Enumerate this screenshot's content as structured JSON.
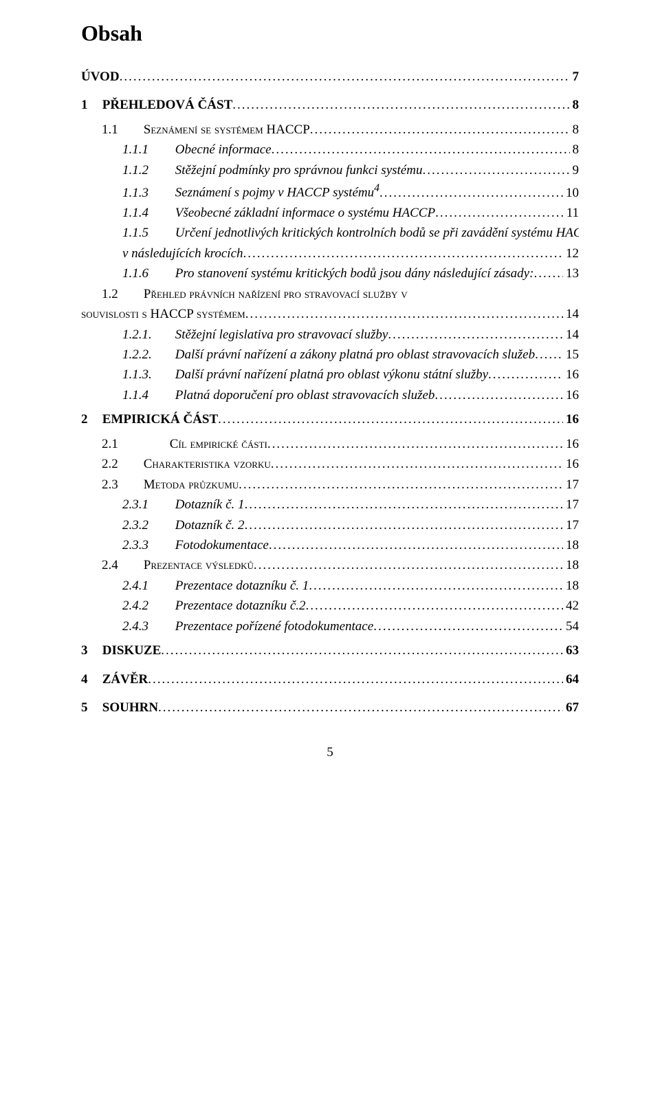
{
  "document": {
    "title": "Obsah",
    "page_number": "5",
    "colors": {
      "text": "#000000",
      "background": "#ffffff"
    },
    "font": {
      "family": "Times New Roman",
      "base_size_pt": 14
    }
  },
  "toc": [
    {
      "level": 0,
      "num": "",
      "text": "ÚVOD",
      "page": "7",
      "style": "heading"
    },
    {
      "level": 0,
      "num": "1",
      "text": "PŘEHLEDOVÁ ČÁST",
      "page": "8",
      "style": "heading"
    },
    {
      "level": 1,
      "num": "1.1",
      "text": "Seznámení se systémem HACCP",
      "page": "8",
      "style": "smallcaps"
    },
    {
      "level": 2,
      "num": "1.1.1",
      "text": "Obecné informace",
      "page": "8",
      "style": "italic"
    },
    {
      "level": 2,
      "num": "1.1.2",
      "text": "Stěžejní podmínky pro správnou funkci systému",
      "page": "9",
      "style": "italic"
    },
    {
      "level": 2,
      "num": "1.1.3",
      "text": "Seznámení s pojmy v HACCP systému",
      "sup": "4",
      "page": "10",
      "style": "italic"
    },
    {
      "level": 2,
      "num": "1.1.4",
      "text": "Všeobecné základní informace o systému HACCP",
      "page": "11",
      "style": "italic"
    },
    {
      "level": 2,
      "num": "1.1.5",
      "text": "Určení jednotlivých kritických kontrolních bodů se při zavádění systému HACCP provádí zhruba          v následujících krocích",
      "page": "12",
      "style": "italic",
      "wrap": true
    },
    {
      "level": 2,
      "num": "1.1.6",
      "text": "Pro stanovení systému kritických bodů jsou dány následující zásady:",
      "page": "13",
      "style": "italic"
    },
    {
      "level": 1,
      "num": "1.2",
      "text": "Přehled právních nařízení  pro stravovací služby v souvislosti s HACCP systémem",
      "page": "14",
      "style": "smallcaps",
      "wrap": true
    },
    {
      "level": 2,
      "num": "1.2.1.",
      "text": "Stěžejní legislativa pro stravovací služby",
      "page": "14",
      "style": "italic"
    },
    {
      "level": 2,
      "num": "1.2.2.",
      "text": "Další právní  nařízení a zákony platná pro oblast stravovacích služeb",
      "page": "15",
      "style": "italic"
    },
    {
      "level": 2,
      "num": "1.1.3.",
      "text": "Další právní  nařízení platná pro oblast výkonu státní služby",
      "page": "16",
      "style": "italic"
    },
    {
      "level": 2,
      "num": "1.1.4",
      "text": "Platná doporučení pro oblast stravovacích služeb",
      "page": "16",
      "style": "italic"
    },
    {
      "level": 0,
      "num": "2",
      "text": "EMPIRICKÁ ČÁST",
      "page": "16",
      "style": "heading"
    },
    {
      "level": 1,
      "num": "2.1",
      "text": "Cíl empirické části",
      "page": "16",
      "style": "smallcaps",
      "tab": true
    },
    {
      "level": 1,
      "num": "2.2",
      "text": "Charakteristika vzorku",
      "page": "16",
      "style": "smallcaps"
    },
    {
      "level": 1,
      "num": "2.3",
      "text": "Metoda průzkumu",
      "page": "17",
      "style": "smallcaps"
    },
    {
      "level": 2,
      "num": "2.3.1",
      "text": "Dotazník č. 1",
      "page": "17",
      "style": "italic"
    },
    {
      "level": 2,
      "num": "2.3.2",
      "text": "Dotazník č. 2",
      "page": "17",
      "style": "italic"
    },
    {
      "level": 2,
      "num": "2.3.3",
      "text": "Fotodokumentace",
      "page": "18",
      "style": "italic"
    },
    {
      "level": 1,
      "num": "2.4",
      "text": "Prezentace výsledků",
      "page": "18",
      "style": "smallcaps"
    },
    {
      "level": 2,
      "num": "2.4.1",
      "text": "Prezentace dotazníku č. 1",
      "page": "18",
      "style": "italic"
    },
    {
      "level": 2,
      "num": "2.4.2",
      "text": "Prezentace dotazníku č.2",
      "page": "42",
      "style": "italic"
    },
    {
      "level": 2,
      "num": "2.4.3",
      "text": "Prezentace pořízené fotodokumentace",
      "page": "54",
      "style": "italic"
    },
    {
      "level": 0,
      "num": "3",
      "text": "DISKUZE",
      "page": "63",
      "style": "heading"
    },
    {
      "level": 0,
      "num": "4",
      "text": "ZÁVĚR",
      "page": "64",
      "style": "heading"
    },
    {
      "level": 0,
      "num": "5",
      "text": "SOUHRN",
      "page": "67",
      "style": "heading"
    }
  ]
}
